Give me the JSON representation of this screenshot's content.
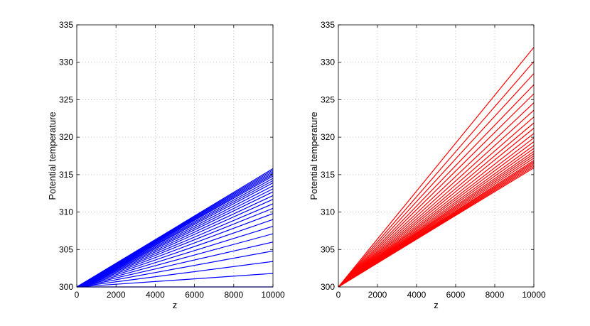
{
  "chart_data": [
    {
      "type": "line",
      "title": "",
      "xlabel": "z",
      "ylabel": "Potential temperature",
      "xlim": [
        0,
        10000
      ],
      "ylim": [
        300,
        335
      ],
      "xticks": [
        0,
        2000,
        4000,
        6000,
        8000,
        10000
      ],
      "yticks": [
        300,
        305,
        310,
        315,
        320,
        325,
        330,
        335
      ],
      "grid": true,
      "line_color": "#0000ff",
      "x": [
        0,
        10000
      ],
      "series": [
        {
          "values": [
            300,
            300.0
          ]
        },
        {
          "values": [
            300,
            301.8
          ]
        },
        {
          "values": [
            300,
            303.4
          ]
        },
        {
          "values": [
            300,
            304.8
          ]
        },
        {
          "values": [
            300,
            306.0
          ]
        },
        {
          "values": [
            300,
            307.1
          ]
        },
        {
          "values": [
            300,
            308.1
          ]
        },
        {
          "values": [
            300,
            309.0
          ]
        },
        {
          "values": [
            300,
            309.8
          ]
        },
        {
          "values": [
            300,
            310.5
          ]
        },
        {
          "values": [
            300,
            311.1
          ]
        },
        {
          "values": [
            300,
            311.7
          ]
        },
        {
          "values": [
            300,
            312.2
          ]
        },
        {
          "values": [
            300,
            312.7
          ]
        },
        {
          "values": [
            300,
            313.1
          ]
        },
        {
          "values": [
            300,
            313.5
          ]
        },
        {
          "values": [
            300,
            313.9
          ]
        },
        {
          "values": [
            300,
            314.2
          ]
        },
        {
          "values": [
            300,
            314.5
          ]
        },
        {
          "values": [
            300,
            314.8
          ]
        },
        {
          "values": [
            300,
            315.0
          ]
        },
        {
          "values": [
            300,
            315.2
          ]
        },
        {
          "values": [
            300,
            315.4
          ]
        },
        {
          "values": [
            300,
            315.6
          ]
        },
        {
          "values": [
            300,
            315.8
          ]
        }
      ]
    },
    {
      "type": "line",
      "title": "",
      "xlabel": "z",
      "ylabel": "Potential temperature",
      "xlim": [
        0,
        10000
      ],
      "ylim": [
        300,
        335
      ],
      "xticks": [
        0,
        2000,
        4000,
        6000,
        8000,
        10000
      ],
      "yticks": [
        300,
        305,
        310,
        315,
        320,
        325,
        330,
        335
      ],
      "grid": true,
      "line_color": "#ff0000",
      "x": [
        0,
        10000
      ],
      "series": [
        {
          "values": [
            300,
            332.0
          ]
        },
        {
          "values": [
            300,
            330.1
          ]
        },
        {
          "values": [
            300,
            328.5
          ]
        },
        {
          "values": [
            300,
            327.0
          ]
        },
        {
          "values": [
            300,
            325.8
          ]
        },
        {
          "values": [
            300,
            324.6
          ]
        },
        {
          "values": [
            300,
            323.6
          ]
        },
        {
          "values": [
            300,
            322.7
          ]
        },
        {
          "values": [
            300,
            321.9
          ]
        },
        {
          "values": [
            300,
            321.2
          ]
        },
        {
          "values": [
            300,
            320.5
          ]
        },
        {
          "values": [
            300,
            319.9
          ]
        },
        {
          "values": [
            300,
            319.4
          ]
        },
        {
          "values": [
            300,
            318.9
          ]
        },
        {
          "values": [
            300,
            318.5
          ]
        },
        {
          "values": [
            300,
            318.1
          ]
        },
        {
          "values": [
            300,
            317.8
          ]
        },
        {
          "values": [
            300,
            317.5
          ]
        },
        {
          "values": [
            300,
            317.2
          ]
        },
        {
          "values": [
            300,
            316.9
          ]
        },
        {
          "values": [
            300,
            316.7
          ]
        },
        {
          "values": [
            300,
            316.5
          ]
        },
        {
          "values": [
            300,
            316.3
          ]
        },
        {
          "values": [
            300,
            316.1
          ]
        },
        {
          "values": [
            300,
            315.9
          ]
        }
      ]
    }
  ]
}
